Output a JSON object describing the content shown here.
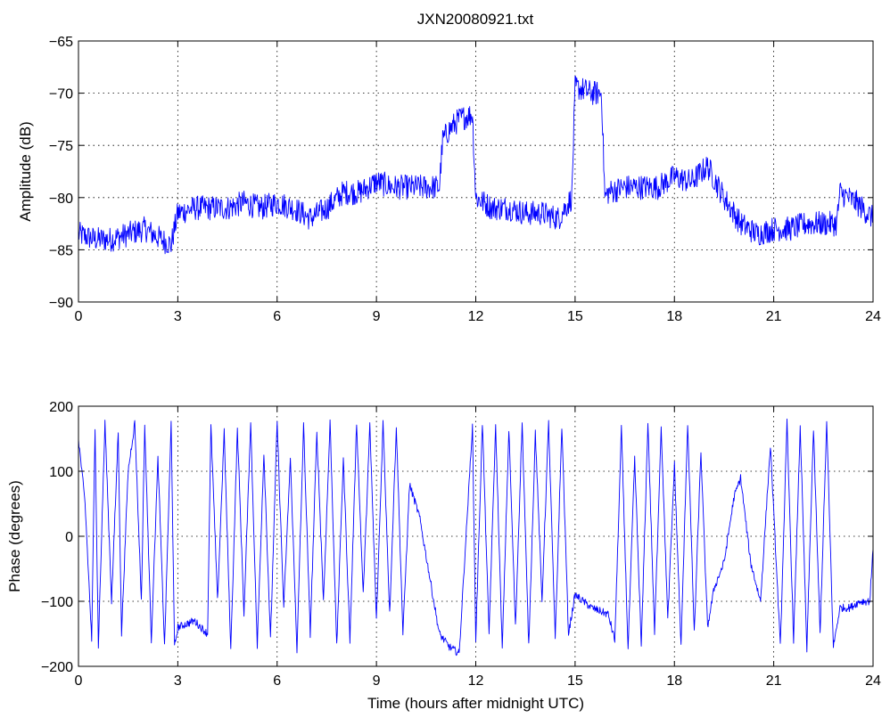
{
  "chart_data": [
    {
      "type": "line",
      "title": "JXN20080921.txt",
      "xlabel": "",
      "ylabel": "Amplitude (dB)",
      "xlim": [
        0,
        24
      ],
      "ylim": [
        -90,
        -65
      ],
      "xticks": [
        0,
        3,
        6,
        9,
        12,
        15,
        18,
        21,
        24
      ],
      "yticks": [
        -65,
        -70,
        -75,
        -80,
        -85,
        -90
      ],
      "grid": true,
      "series": [
        {
          "name": "",
          "color": "#0000ff",
          "x": [
            0,
            0.5,
            1,
            1.5,
            2,
            2.5,
            2.8,
            3,
            3.5,
            4,
            4.5,
            5,
            5.5,
            6,
            6.5,
            7,
            7.5,
            8,
            8.5,
            9,
            9.5,
            10,
            10.5,
            10.9,
            11,
            11.2,
            11.5,
            11.9,
            12,
            12.5,
            13,
            13.5,
            14,
            14.5,
            14.9,
            15,
            15.1,
            15.5,
            15.8,
            15.9,
            16,
            16.5,
            17,
            17.5,
            18,
            18.5,
            19,
            19.5,
            20,
            20.5,
            21,
            21.5,
            22,
            22.5,
            22.9,
            23,
            23.5,
            24
          ],
          "y": [
            -83.5,
            -84,
            -84,
            -83.5,
            -83,
            -84,
            -84.5,
            -81.5,
            -81,
            -81,
            -81,
            -80.5,
            -81,
            -80.5,
            -81,
            -82,
            -81,
            -79.5,
            -79.5,
            -78.5,
            -79,
            -79,
            -79,
            -79,
            -74.5,
            -73.5,
            -72.5,
            -72,
            -80,
            -81,
            -81,
            -81.5,
            -81.5,
            -82,
            -80,
            -69.5,
            -69.5,
            -70,
            -70,
            -80,
            -79.5,
            -79,
            -79,
            -79,
            -78,
            -78.5,
            -77,
            -80,
            -82.5,
            -83.5,
            -83,
            -83,
            -82.5,
            -82.5,
            -82.5,
            -79.5,
            -80.5,
            -82
          ]
        }
      ]
    },
    {
      "type": "line",
      "title": "",
      "xlabel": "Time (hours after midnight UTC)",
      "ylabel": "Phase (degrees)",
      "xlim": [
        0,
        24
      ],
      "ylim": [
        -200,
        200
      ],
      "xticks": [
        0,
        3,
        6,
        9,
        12,
        15,
        18,
        21,
        24
      ],
      "yticks": [
        200,
        100,
        0,
        -100,
        -200
      ],
      "grid": true,
      "series": [
        {
          "name": "",
          "color": "#0000ff",
          "x": [
            0,
            0.2,
            0.4,
            0.5,
            0.6,
            0.8,
            1.0,
            1.2,
            1.3,
            1.5,
            1.7,
            1.9,
            2.0,
            2.2,
            2.4,
            2.6,
            2.8,
            2.9,
            3.0,
            3.5,
            3.9,
            4.0,
            4.2,
            4.4,
            4.6,
            4.8,
            5.0,
            5.2,
            5.4,
            5.6,
            5.8,
            6.0,
            6.2,
            6.4,
            6.6,
            6.8,
            7.0,
            7.2,
            7.4,
            7.6,
            7.8,
            8.0,
            8.2,
            8.4,
            8.6,
            8.8,
            9.0,
            9.2,
            9.4,
            9.6,
            9.8,
            10.0,
            10.3,
            10.6,
            10.9,
            11.2,
            11.5,
            11.9,
            12.0,
            12.2,
            12.4,
            12.6,
            12.8,
            13.0,
            13.2,
            13.4,
            13.6,
            13.8,
            14.0,
            14.2,
            14.4,
            14.6,
            14.8,
            15.0,
            15.5,
            16.0,
            16.2,
            16.4,
            16.6,
            16.8,
            17.0,
            17.2,
            17.4,
            17.6,
            17.8,
            18.0,
            18.2,
            18.4,
            18.6,
            18.8,
            19.0,
            19.2,
            19.5,
            19.8,
            20.0,
            20.3,
            20.6,
            20.9,
            21.2,
            21.4,
            21.6,
            21.8,
            22.0,
            22.2,
            22.4,
            22.6,
            22.8,
            23.0,
            23.3,
            23.6,
            23.9,
            24.0
          ],
          "y": [
            150,
            50,
            -160,
            170,
            -170,
            175,
            -100,
            160,
            -150,
            100,
            175,
            -100,
            170,
            -160,
            120,
            -170,
            175,
            -170,
            -140,
            -130,
            -150,
            170,
            -100,
            160,
            -175,
            165,
            -120,
            175,
            -170,
            130,
            -160,
            175,
            -110,
            120,
            -175,
            170,
            -150,
            160,
            -100,
            175,
            -170,
            120,
            -160,
            175,
            -90,
            170,
            -130,
            175,
            -120,
            170,
            -150,
            80,
            30,
            -60,
            -150,
            -170,
            -180,
            170,
            -160,
            175,
            -150,
            170,
            -175,
            165,
            -140,
            175,
            -170,
            160,
            -100,
            175,
            -160,
            170,
            -150,
            -90,
            -110,
            -120,
            -160,
            165,
            -175,
            120,
            -170,
            175,
            -150,
            170,
            -130,
            110,
            -170,
            175,
            -150,
            130,
            -140,
            -80,
            -40,
            60,
            90,
            -40,
            -100,
            140,
            -170,
            175,
            -160,
            170,
            -175,
            165,
            -150,
            175,
            -170,
            -110,
            -110,
            -100,
            -100,
            -20
          ]
        }
      ]
    }
  ]
}
